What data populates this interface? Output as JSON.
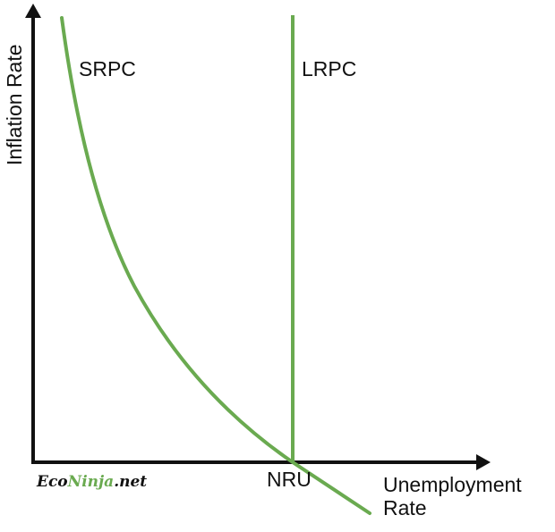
{
  "axes": {
    "y_label": "Inflation Rate",
    "x_label_line1": "Unemployment",
    "x_label_line2": "Rate",
    "x_tick": "NRU"
  },
  "curves": {
    "srpc_label": "SRPC",
    "lrpc_label": "LRPC"
  },
  "logo": {
    "part1": "Eco",
    "part2": "Ninja",
    "part3": ".net"
  },
  "colors": {
    "curve": "#6aaa50",
    "axis": "#111111",
    "logo_dark": "#111111",
    "logo_accent": "#6aaa50"
  }
}
